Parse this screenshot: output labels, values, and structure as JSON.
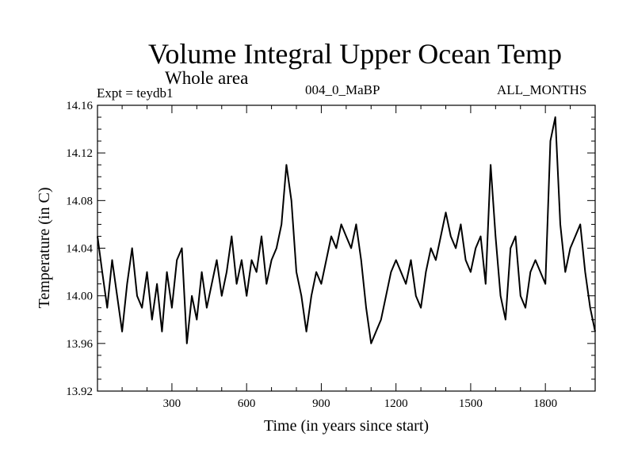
{
  "chart_data": {
    "type": "line",
    "title": "Volume Integral Upper Ocean Temp",
    "subtitle": "Whole area",
    "experiment_label": "Expt = teydb1",
    "run_label": "004_0_MaBP",
    "months_label": "ALL_MONTHS",
    "xlabel": "Time (in years since start)",
    "ylabel": "Temperature (in C)",
    "xlim": [
      1,
      2000
    ],
    "ylim": [
      13.92,
      14.16
    ],
    "x_ticks": [
      300,
      600,
      900,
      1200,
      1500,
      1800
    ],
    "y_ticks": [
      13.92,
      13.96,
      14.0,
      14.04,
      14.08,
      14.12,
      14.16
    ],
    "y_tick_labels": [
      "13.92",
      "13.96",
      "14.00",
      "14.04",
      "14.08",
      "14.12",
      "14.16"
    ],
    "grid": false,
    "series": [
      {
        "name": "Volume integral upper ocean temperature",
        "color": "#000000",
        "x": [
          1,
          20,
          40,
          60,
          80,
          100,
          120,
          140,
          160,
          180,
          200,
          220,
          240,
          260,
          280,
          300,
          320,
          340,
          360,
          380,
          400,
          420,
          440,
          460,
          480,
          500,
          520,
          540,
          560,
          580,
          600,
          620,
          640,
          660,
          680,
          700,
          720,
          740,
          760,
          780,
          800,
          820,
          840,
          860,
          880,
          900,
          920,
          940,
          960,
          980,
          1000,
          1020,
          1040,
          1060,
          1080,
          1100,
          1120,
          1140,
          1160,
          1180,
          1200,
          1220,
          1240,
          1260,
          1280,
          1300,
          1320,
          1340,
          1360,
          1380,
          1400,
          1420,
          1440,
          1460,
          1480,
          1500,
          1520,
          1540,
          1560,
          1580,
          1600,
          1620,
          1640,
          1660,
          1680,
          1700,
          1720,
          1740,
          1760,
          1780,
          1800,
          1820,
          1840,
          1860,
          1880,
          1900,
          1920,
          1940,
          1960,
          1980,
          2000
        ],
        "values": [
          14.05,
          14.02,
          13.99,
          14.03,
          14.0,
          13.97,
          14.01,
          14.04,
          14.0,
          13.99,
          14.02,
          13.98,
          14.01,
          13.97,
          14.02,
          13.99,
          14.03,
          14.04,
          13.96,
          14.0,
          13.98,
          14.02,
          13.99,
          14.01,
          14.03,
          14.0,
          14.02,
          14.05,
          14.01,
          14.03,
          14.0,
          14.03,
          14.02,
          14.05,
          14.01,
          14.03,
          14.04,
          14.06,
          14.11,
          14.08,
          14.02,
          14.0,
          13.97,
          14.0,
          14.02,
          14.01,
          14.03,
          14.05,
          14.04,
          14.06,
          14.05,
          14.04,
          14.06,
          14.03,
          13.99,
          13.96,
          13.97,
          13.98,
          14.0,
          14.02,
          14.03,
          14.02,
          14.01,
          14.03,
          14.0,
          13.99,
          14.02,
          14.04,
          14.03,
          14.05,
          14.07,
          14.05,
          14.04,
          14.06,
          14.03,
          14.02,
          14.04,
          14.05,
          14.01,
          14.11,
          14.05,
          14.0,
          13.98,
          14.04,
          14.05,
          14.0,
          13.99,
          14.02,
          14.03,
          14.02,
          14.01,
          14.13,
          14.15,
          14.06,
          14.02,
          14.04,
          14.05,
          14.06,
          14.02,
          13.99,
          13.97
        ]
      }
    ]
  }
}
